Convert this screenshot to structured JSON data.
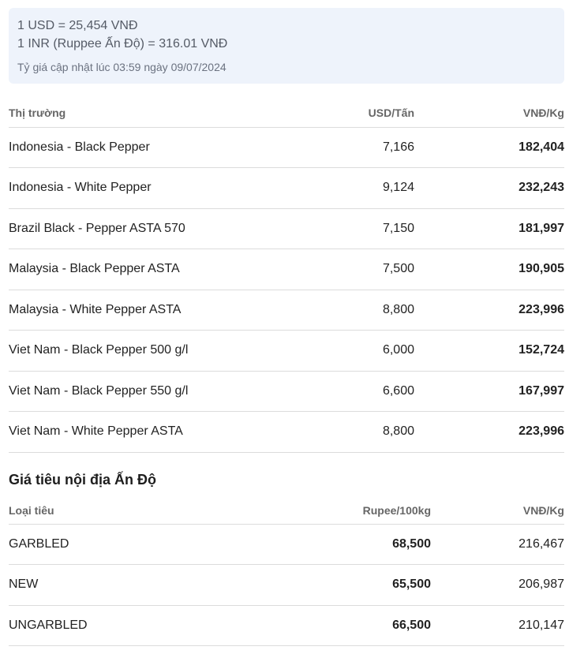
{
  "exchange": {
    "usd_rate": "1 USD = 25,454 VNĐ",
    "inr_rate": "1 INR (Ruppee Ấn Độ) = 316.01 VNĐ",
    "updated": "Tỷ giá cập nhật lúc 03:59 ngày 09/07/2024"
  },
  "intl_table": {
    "headers": {
      "market": "Thị trường",
      "usd": "USD/Tấn",
      "vnd": "VNĐ/Kg"
    },
    "rows": [
      {
        "market": "Indonesia - Black Pepper",
        "usd": "7,166",
        "vnd": "182,404"
      },
      {
        "market": "Indonesia - White Pepper",
        "usd": "9,124",
        "vnd": "232,243"
      },
      {
        "market": "Brazil Black - Pepper ASTA 570",
        "usd": "7,150",
        "vnd": "181,997"
      },
      {
        "market": "Malaysia - Black Pepper ASTA",
        "usd": "7,500",
        "vnd": "190,905"
      },
      {
        "market": "Malaysia - White Pepper ASTA",
        "usd": "8,800",
        "vnd": "223,996"
      },
      {
        "market": "Viet Nam - Black Pepper 500 g/l",
        "usd": "6,000",
        "vnd": "152,724"
      },
      {
        "market": "Viet Nam - Black Pepper 550 g/l",
        "usd": "6,600",
        "vnd": "167,997"
      },
      {
        "market": "Viet Nam - White Pepper ASTA",
        "usd": "8,800",
        "vnd": "223,996"
      }
    ]
  },
  "india_section": {
    "title": "Giá tiêu nội địa Ấn Độ",
    "headers": {
      "type": "Loại tiêu",
      "rupee": "Rupee/100kg",
      "vnd": "VNĐ/Kg"
    },
    "rows": [
      {
        "type": "GARBLED",
        "rupee": "68,500",
        "vnd": "216,467"
      },
      {
        "type": "NEW",
        "rupee": "65,500",
        "vnd": "206,987"
      },
      {
        "type": "UNGARBLED",
        "rupee": "66,500",
        "vnd": "210,147"
      }
    ]
  }
}
